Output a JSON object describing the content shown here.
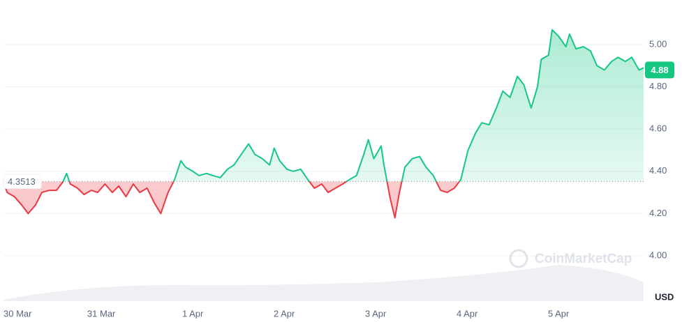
{
  "chart_data": {
    "type": "line",
    "unit": "USD",
    "watermark": "CoinMarketCap",
    "up_color": "#16c784",
    "down_color": "#ea3943",
    "baseline": 4.3513,
    "last_price": 4.88,
    "grid": true,
    "xlim": [
      -2.07,
      4.93
    ],
    "ylim": [
      3.8,
      5.2
    ],
    "xticks": [
      {
        "value": -2,
        "label": "30 Mar"
      },
      {
        "value": -1,
        "label": "31 Mar"
      },
      {
        "value": 0,
        "label": "1 Apr"
      },
      {
        "value": 1,
        "label": "2 Apr"
      },
      {
        "value": 2,
        "label": "3 Apr"
      },
      {
        "value": 3,
        "label": "4 Apr"
      },
      {
        "value": 4,
        "label": "5 Apr"
      }
    ],
    "yticks": [
      {
        "value": 4,
        "label": "4.00"
      },
      {
        "value": 4.2,
        "label": "4.20"
      },
      {
        "value": 4.4,
        "label": "4.40"
      },
      {
        "value": 4.6,
        "label": "4.60"
      },
      {
        "value": 4.8,
        "label": "4.80"
      },
      {
        "value": 5,
        "label": "5.00"
      }
    ],
    "x": [
      -2.07,
      -2.03,
      -1.95,
      -1.87,
      -1.8,
      -1.72,
      -1.65,
      -1.57,
      -1.49,
      -1.42,
      -1.38,
      -1.34,
      -1.26,
      -1.19,
      -1.11,
      -1.04,
      -0.96,
      -0.88,
      -0.81,
      -0.73,
      -0.65,
      -0.58,
      -0.5,
      -0.42,
      -0.35,
      -0.27,
      -0.2,
      -0.13,
      -0.08,
      0.0,
      0.07,
      0.15,
      0.22,
      0.3,
      0.38,
      0.45,
      0.53,
      0.61,
      0.68,
      0.76,
      0.84,
      0.89,
      0.95,
      1.03,
      1.1,
      1.18,
      1.26,
      1.33,
      1.41,
      1.48,
      1.56,
      1.64,
      1.71,
      1.79,
      1.87,
      1.92,
      1.98,
      2.06,
      2.09,
      2.16,
      2.21,
      2.26,
      2.32,
      2.4,
      2.48,
      2.55,
      2.63,
      2.71,
      2.78,
      2.86,
      2.93,
      3.01,
      3.09,
      3.16,
      3.24,
      3.32,
      3.39,
      3.47,
      3.55,
      3.62,
      3.7,
      3.77,
      3.81,
      3.89,
      3.93,
      4.0,
      4.08,
      4.12,
      4.19,
      4.27,
      4.35,
      4.42,
      4.5,
      4.58,
      4.65,
      4.73,
      4.8,
      4.88,
      4.93
    ],
    "values": [
      4.35,
      4.3,
      4.28,
      4.24,
      4.2,
      4.24,
      4.3,
      4.31,
      4.31,
      4.35,
      4.39,
      4.34,
      4.32,
      4.29,
      4.31,
      4.3,
      4.34,
      4.3,
      4.33,
      4.28,
      4.34,
      4.3,
      4.32,
      4.25,
      4.2,
      4.3,
      4.36,
      4.45,
      4.42,
      4.4,
      4.38,
      4.39,
      4.38,
      4.37,
      4.41,
      4.43,
      4.48,
      4.53,
      4.48,
      4.46,
      4.43,
      4.51,
      4.45,
      4.41,
      4.4,
      4.41,
      4.36,
      4.32,
      4.34,
      4.3,
      4.32,
      4.34,
      4.36,
      4.38,
      4.48,
      4.55,
      4.46,
      4.52,
      4.43,
      4.27,
      4.18,
      4.3,
      4.42,
      4.46,
      4.47,
      4.42,
      4.38,
      4.31,
      4.3,
      4.32,
      4.36,
      4.5,
      4.58,
      4.63,
      4.62,
      4.7,
      4.78,
      4.75,
      4.85,
      4.81,
      4.7,
      4.8,
      4.93,
      4.95,
      5.07,
      5.04,
      4.99,
      5.05,
      4.98,
      4.99,
      4.97,
      4.9,
      4.88,
      4.92,
      4.94,
      4.92,
      4.94,
      4.88,
      4.89
    ]
  }
}
